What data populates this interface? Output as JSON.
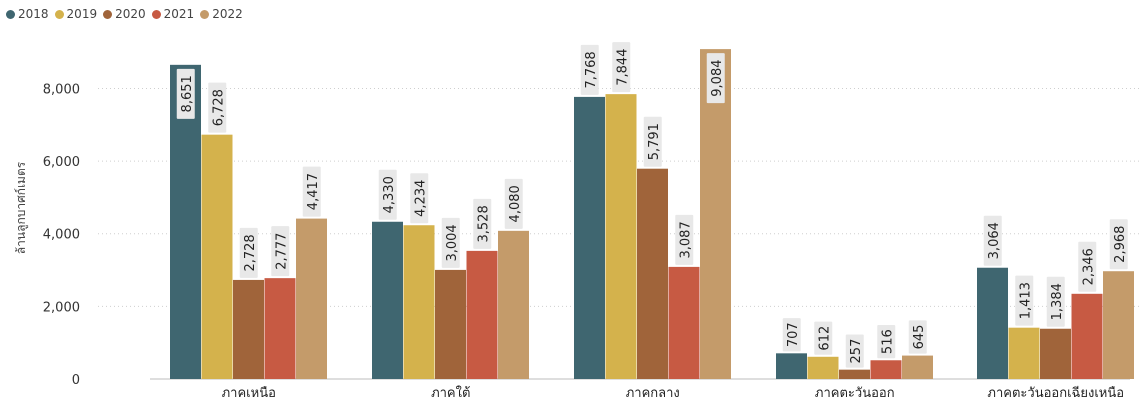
{
  "chart_data": {
    "type": "bar",
    "ylabel": "ล้านลูกบาศก์เมตร",
    "ylim": [
      0,
      9500
    ],
    "yticks": [
      0,
      2000,
      4000,
      6000,
      8000
    ],
    "ytick_labels": [
      "0",
      "2,000",
      "4,000",
      "6,000",
      "8,000"
    ],
    "grid": true,
    "legend_position": "top-left",
    "categories": [
      "ภาคเหนือ",
      "ภาคใต้",
      "ภาคกลาง",
      "ภาคตะวันออก",
      "ภาคตะวันออกเฉียงเหนือ"
    ],
    "series": [
      {
        "name": "2018",
        "color": "#3f6670",
        "values": [
          8651,
          4330,
          7768,
          707,
          3064
        ],
        "labels": [
          "8,651",
          "4,330",
          "7,768",
          "707",
          "3,064"
        ]
      },
      {
        "name": "2019",
        "color": "#d4b24c",
        "values": [
          6728,
          4234,
          7844,
          612,
          1413
        ],
        "labels": [
          "6,728",
          "4,234",
          "7,844",
          "612",
          "1,413"
        ]
      },
      {
        "name": "2020",
        "color": "#a0643a",
        "values": [
          2728,
          3004,
          5791,
          257,
          1384
        ],
        "labels": [
          "2,728",
          "3,004",
          "5,791",
          "257",
          "1,384"
        ]
      },
      {
        "name": "2021",
        "color": "#c75a43",
        "values": [
          2777,
          3528,
          3087,
          516,
          2346
        ],
        "labels": [
          "2,777",
          "3,528",
          "3,087",
          "516",
          "2,346"
        ]
      },
      {
        "name": "2022",
        "color": "#c49b6a",
        "values": [
          4417,
          4080,
          9084,
          645,
          2968
        ],
        "labels": [
          "4,417",
          "4,080",
          "9,084",
          "645",
          "2,968"
        ]
      }
    ]
  }
}
